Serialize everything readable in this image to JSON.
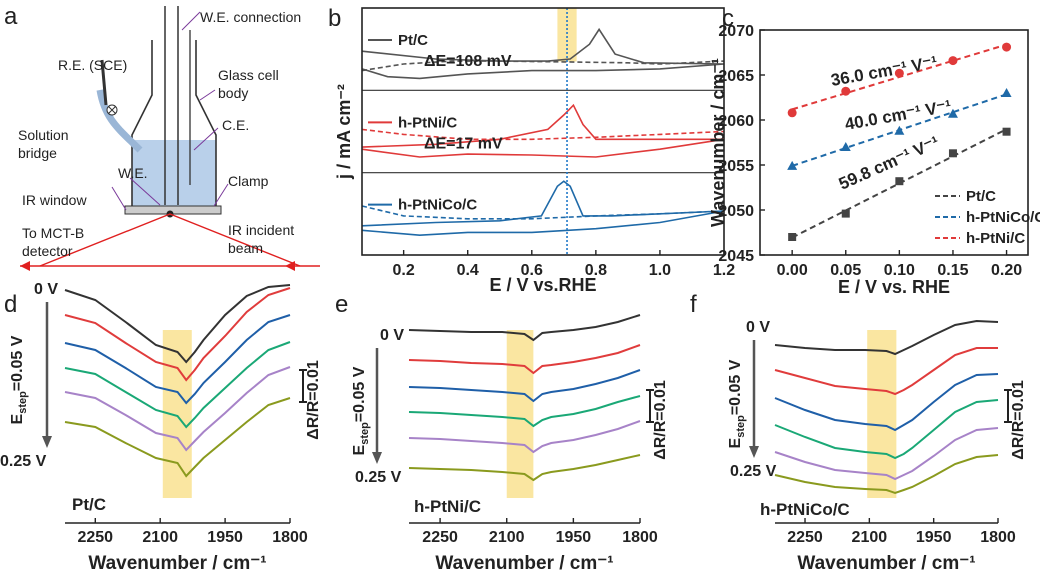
{
  "diagram": {
    "label": "a",
    "texts": [
      "W.E. connection",
      "R.E. (SCE)",
      "Glass cell",
      "body",
      "Solution",
      "bridge",
      "C.E.",
      "W.E.",
      "Clamp",
      "IR window",
      "To MCT-B",
      "detector",
      "IR incident",
      "beam"
    ]
  },
  "chart_data": [
    {
      "type": "cv",
      "label": "b",
      "xlabel": "E / V vs.RHE",
      "ylabel": "j / mA cm⁻²",
      "xlim": [
        0.07,
        1.2
      ],
      "xticks": [
        0.2,
        0.4,
        0.6,
        0.8,
        {
          "value": 1,
          "label": "1.0"
        },
        1.2
      ],
      "highlight": [
        0.68,
        0.74
      ],
      "reference_potential": 0.71,
      "panels": [
        {
          "name": "Pt/C",
          "color": "#555555",
          "ylim": [
            -1,
            1
          ],
          "annotation": "ΔE=108 mV",
          "x": [
            0.07,
            0.3,
            0.5,
            0.65,
            0.72,
            0.78,
            0.81,
            0.86,
            0.95,
            1.2,
            1.0,
            0.8,
            0.6,
            0.4,
            0.25,
            0.15,
            0.07
          ],
          "values": [
            -0.05,
            -0.24,
            -0.29,
            -0.29,
            -0.24,
            0.12,
            0.48,
            -0.12,
            -0.33,
            -0.36,
            -0.48,
            -0.52,
            -0.52,
            -0.6,
            -0.71,
            -0.67,
            -0.48
          ],
          "dashed_x": [
            0.07,
            0.2,
            0.35,
            0.5,
            0.7,
            0.9,
            1.0,
            1.2
          ],
          "dashed_values": [
            -0.52,
            -0.36,
            -0.29,
            -0.29,
            -0.31,
            -0.33,
            -0.36,
            -0.29
          ]
        },
        {
          "name": "h-PtNi/C",
          "color": "#e03a3a",
          "ylim": [
            -1,
            1
          ],
          "annotation": "ΔE=17 mV",
          "x": [
            0.07,
            0.3,
            0.5,
            0.65,
            0.7,
            0.73,
            0.76,
            0.8,
            0.9,
            1.2,
            1.0,
            0.8,
            0.6,
            0.4,
            0.25,
            0.07
          ],
          "values": [
            -0.38,
            -0.31,
            -0.19,
            0.05,
            0.4,
            0.64,
            0.17,
            -0.19,
            -0.19,
            -0.19,
            -0.43,
            -0.62,
            -0.57,
            -0.55,
            -0.62,
            -0.43
          ],
          "dashed_x": [
            0.07,
            0.2,
            0.4,
            0.6,
            0.8,
            1.0,
            1.2
          ],
          "dashed_values": [
            0.05,
            -0.07,
            -0.19,
            -0.19,
            -0.14,
            -0.07,
            0
          ]
        },
        {
          "name": "h-PtNiCo/C",
          "color": "#1f6aa8",
          "ylim": [
            -1,
            1
          ],
          "x": [
            0.07,
            0.3,
            0.5,
            0.63,
            0.68,
            0.7,
            0.72,
            0.76,
            0.85,
            1.2,
            1.0,
            0.8,
            0.6,
            0.4,
            0.25,
            0.07
          ],
          "values": [
            -0.29,
            -0.21,
            -0.17,
            -0.05,
            0.67,
            0.79,
            0.67,
            -0.05,
            -0.05,
            0.07,
            -0.21,
            -0.36,
            -0.45,
            -0.45,
            -0.52,
            -0.4
          ],
          "dashed_x": [
            0.07,
            0.2,
            0.4,
            0.6,
            0.8,
            1.0,
            1.2
          ],
          "dashed_values": [
            0.19,
            -0.05,
            -0.12,
            -0.12,
            -0.05,
            0,
            0.07
          ]
        }
      ]
    },
    {
      "type": "scatter",
      "label": "c",
      "xlabel": "E / V vs. RHE",
      "ylabel": "Wavenumber / cm⁻¹",
      "x": [
        0,
        0.05,
        0.1,
        0.15,
        0.2
      ],
      "xlim": [
        -0.03,
        0.22
      ],
      "xticks": [
        {
          "value": 0,
          "label": "0.00"
        },
        0.05,
        {
          "value": 0.1,
          "label": "0.10"
        },
        0.15,
        {
          "value": 0.2,
          "label": "0.20"
        }
      ],
      "ylim": [
        2045,
        2070
      ],
      "yticks": [
        2045,
        2050,
        2055,
        2060,
        2065,
        2070
      ],
      "series": [
        {
          "name": "Pt/C",
          "color": "#444444",
          "marker": "square",
          "annotation": "59.8 cm⁻¹ V⁻¹",
          "values": [
            2047.0,
            2049.6,
            2053.2,
            2056.3,
            2058.7
          ]
        },
        {
          "name": "h-PtNiCo/C",
          "color": "#1f6aa8",
          "marker": "triangle",
          "annotation": "40.0 cm⁻¹ V⁻¹",
          "values": [
            2054.9,
            2057.0,
            2058.8,
            2060.7,
            2063.0
          ]
        },
        {
          "name": "h-PtNi/C",
          "color": "#e03a3a",
          "marker": "circle",
          "annotation": "36.0 cm⁻¹ V⁻¹",
          "values": [
            2060.8,
            2063.2,
            2065.2,
            2066.6,
            2068.1
          ]
        }
      ]
    },
    {
      "type": "spectra",
      "label": "d",
      "sample": "Pt/C",
      "xlabel": "Wavenumber / cm⁻¹",
      "xlim": [
        2320,
        1800
      ],
      "xticks": [
        2250,
        2100,
        1950,
        1800
      ],
      "ylim": [
        0,
        240
      ],
      "highlight": [
        2094,
        2027
      ],
      "start_label": "0 V",
      "end_label": "0.25 V",
      "step": {
        "main": "E",
        "sub": "step",
        "rest": "=0.05 V"
      },
      "scale_label": "ΔR/R=0.01",
      "x": [
        2320,
        2250,
        2180,
        2110,
        2060,
        2040,
        2020,
        2000,
        1950,
        1900,
        1850,
        1800
      ],
      "series": [
        {
          "color": "#333333",
          "values": [
            230,
            220,
            198,
            175,
            168,
            158,
            168,
            180,
            205,
            224,
            233,
            235
          ]
        },
        {
          "color": "#e03c3c",
          "values": [
            205,
            197,
            177,
            158,
            152,
            140,
            150,
            162,
            184,
            208,
            225,
            232
          ]
        },
        {
          "color": "#1f5fa8",
          "values": [
            177,
            170,
            152,
            133,
            128,
            117,
            126,
            137,
            158,
            180,
            198,
            205
          ]
        },
        {
          "color": "#1aa876",
          "values": [
            152,
            146,
            128,
            110,
            104,
            93,
            102,
            112,
            132,
            152,
            170,
            178
          ]
        },
        {
          "color": "#a783c8",
          "values": [
            128,
            122,
            105,
            87,
            82,
            70,
            79,
            88,
            107,
            127,
            145,
            153
          ]
        },
        {
          "color": "#8a9a1e",
          "values": [
            98,
            93,
            77,
            62,
            57,
            44,
            53,
            62,
            80,
            98,
            115,
            122
          ]
        }
      ]
    },
    {
      "type": "spectra",
      "label": "e",
      "sample": "h-PtNi/C",
      "xlabel": "Wavenumber / cm⁻¹",
      "xlim": [
        2320,
        1800
      ],
      "xticks": [
        2250,
        2100,
        1950,
        1800
      ],
      "ylim": [
        0,
        240
      ],
      "highlight": [
        2100,
        2040
      ],
      "start_label": "0 V",
      "end_label": "0.25 V",
      "step": {
        "main": "E",
        "sub": "step",
        "rest": "=0.05 V"
      },
      "scale_label": "ΔR/R=0.01",
      "x": [
        2320,
        2250,
        2180,
        2110,
        2060,
        2040,
        2020,
        2000,
        1950,
        1900,
        1850,
        1800
      ],
      "series": [
        {
          "color": "#333333",
          "values": [
            190,
            189,
            188,
            188,
            186,
            180,
            187,
            188,
            190,
            193,
            198,
            205
          ]
        },
        {
          "color": "#e03c3c",
          "values": [
            160,
            159,
            157,
            156,
            154,
            147,
            154,
            155,
            158,
            162,
            167,
            175
          ]
        },
        {
          "color": "#1f5fa8",
          "values": [
            133,
            132,
            130,
            128,
            126,
            119,
            126,
            128,
            131,
            136,
            142,
            150
          ]
        },
        {
          "color": "#1aa876",
          "values": [
            108,
            107,
            105,
            103,
            101,
            94,
            100,
            103,
            106,
            111,
            118,
            124
          ]
        },
        {
          "color": "#a783c8",
          "values": [
            82,
            81,
            79,
            77,
            75,
            68,
            74,
            77,
            80,
            85,
            91,
            99
          ]
        },
        {
          "color": "#8a9a1e",
          "values": [
            52,
            51,
            50,
            48,
            46,
            40,
            46,
            48,
            51,
            55,
            60,
            65
          ]
        }
      ]
    },
    {
      "type": "spectra",
      "label": "f",
      "sample": "h-PtNiCo/C",
      "xlabel": "Wavenumber / cm⁻¹",
      "xlim": [
        2320,
        1800
      ],
      "xticks": [
        2250,
        2100,
        1950,
        1800
      ],
      "ylim": [
        0,
        240
      ],
      "highlight": [
        2105,
        2037
      ],
      "start_label": "0 V",
      "end_label": "0.25 V",
      "step": {
        "main": "E",
        "sub": "step",
        "rest": "=0.05 V"
      },
      "scale_label": "ΔR/R=0.01",
      "x": [
        2320,
        2250,
        2180,
        2110,
        2060,
        2040,
        2020,
        2000,
        1950,
        1900,
        1850,
        1800
      ],
      "series": [
        {
          "color": "#333333",
          "values": [
            175,
            172,
            170,
            170,
            169,
            166,
            170,
            174,
            185,
            195,
            199,
            198
          ]
        },
        {
          "color": "#e03c3c",
          "values": [
            150,
            142,
            134,
            131,
            129,
            126,
            130,
            135,
            150,
            165,
            172,
            172
          ]
        },
        {
          "color": "#1f5fa8",
          "values": [
            122,
            110,
            100,
            96,
            94,
            90,
            95,
            100,
            118,
            135,
            145,
            146
          ]
        },
        {
          "color": "#1aa876",
          "values": [
            95,
            83,
            72,
            68,
            66,
            62,
            66,
            72,
            90,
            108,
            118,
            120
          ]
        },
        {
          "color": "#a783c8",
          "values": [
            68,
            58,
            50,
            47,
            45,
            41,
            45,
            49,
            64,
            80,
            90,
            92
          ]
        },
        {
          "color": "#8a9a1e",
          "values": [
            45,
            38,
            33,
            31,
            30,
            27,
            30,
            33,
            44,
            56,
            63,
            65
          ]
        }
      ]
    }
  ]
}
